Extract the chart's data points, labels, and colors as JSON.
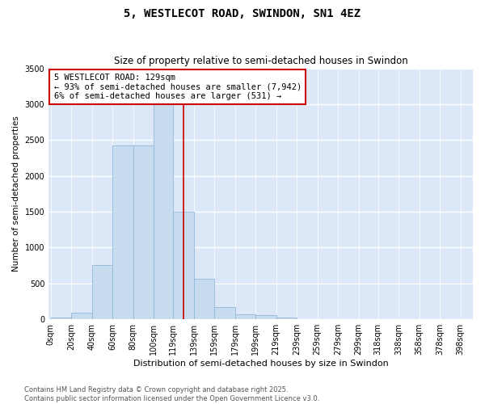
{
  "title": "5, WESTLECOT ROAD, SWINDON, SN1 4EZ",
  "subtitle": "Size of property relative to semi-detached houses in Swindon",
  "xlabel": "Distribution of semi-detached houses by size in Swindon",
  "ylabel": "Number of semi-detached properties",
  "bar_color": "#c8dcf0",
  "bar_edge_color": "#90b8d8",
  "background_color": "#dce8f8",
  "grid_color": "#ffffff",
  "annotation_text": "5 WESTLECOT ROAD: 129sqm\n← 93% of semi-detached houses are smaller (7,942)\n6% of semi-detached houses are larger (531) →",
  "vline_x": 129,
  "vline_color": "#cc0000",
  "annotation_box_color": "#ffffff",
  "annotation_box_edge": "#cc0000",
  "categories": [
    "0sqm",
    "20sqm",
    "40sqm",
    "60sqm",
    "80sqm",
    "100sqm",
    "119sqm",
    "139sqm",
    "159sqm",
    "179sqm",
    "199sqm",
    "219sqm",
    "239sqm",
    "259sqm",
    "279sqm",
    "299sqm",
    "318sqm",
    "338sqm",
    "358sqm",
    "378sqm",
    "398sqm"
  ],
  "bin_edges": [
    0,
    20,
    40,
    60,
    80,
    100,
    119,
    139,
    159,
    179,
    199,
    219,
    239,
    259,
    279,
    299,
    318,
    338,
    358,
    378,
    398
  ],
  "bin_heights": [
    20,
    90,
    760,
    2430,
    2420,
    3000,
    1500,
    570,
    170,
    75,
    55,
    25,
    5,
    2,
    2,
    1,
    1,
    0,
    0,
    0
  ],
  "ylim": [
    0,
    3500
  ],
  "yticks": [
    0,
    500,
    1000,
    1500,
    2000,
    2500,
    3000,
    3500
  ],
  "footer_text": "Contains HM Land Registry data © Crown copyright and database right 2025.\nContains public sector information licensed under the Open Government Licence v3.0.",
  "title_fontsize": 10,
  "subtitle_fontsize": 8.5,
  "xlabel_fontsize": 8,
  "ylabel_fontsize": 7.5,
  "tick_fontsize": 7,
  "annotation_fontsize": 7.5,
  "footer_fontsize": 6
}
